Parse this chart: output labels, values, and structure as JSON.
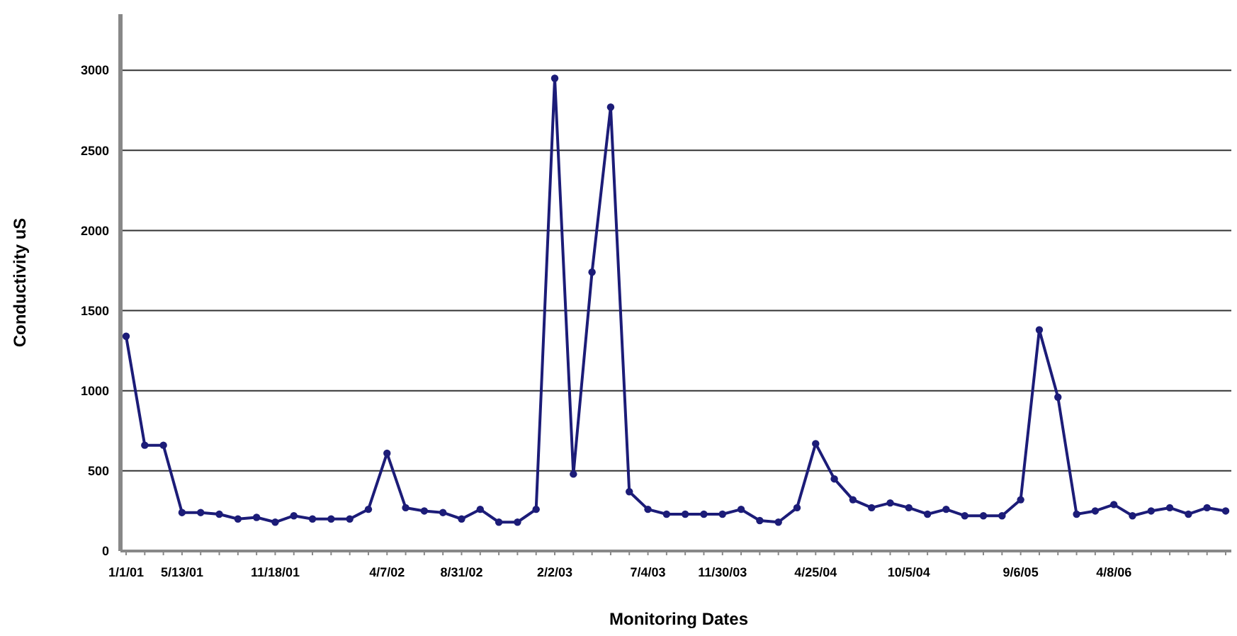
{
  "chart_data": {
    "type": "line",
    "xlabel": "Monitoring Dates",
    "ylabel": "Conductivity uS",
    "categories": [
      "1/1/01",
      null,
      null,
      "5/13/01",
      null,
      null,
      null,
      null,
      "11/18/01",
      null,
      null,
      null,
      null,
      null,
      "4/7/02",
      null,
      null,
      null,
      "8/31/02",
      null,
      null,
      null,
      null,
      "2/2/03",
      null,
      null,
      null,
      null,
      "7/4/03",
      null,
      null,
      null,
      "11/30/03",
      null,
      null,
      null,
      null,
      "4/25/04",
      null,
      null,
      null,
      null,
      "10/5/04",
      null,
      null,
      null,
      null,
      null,
      "9/6/05",
      null,
      null,
      null,
      null,
      "4/8/06",
      null,
      null,
      null,
      null,
      null,
      null
    ],
    "series": [
      {
        "color": "#1c1c78",
        "values": [
          1340,
          660,
          660,
          240,
          240,
          230,
          200,
          210,
          180,
          220,
          200,
          200,
          200,
          260,
          610,
          270,
          250,
          240,
          200,
          260,
          180,
          180,
          260,
          2950,
          480,
          1740,
          2770,
          370,
          260,
          230,
          230,
          230,
          230,
          260,
          190,
          180,
          270,
          670,
          450,
          320,
          270,
          300,
          270,
          230,
          260,
          220,
          220,
          220,
          320,
          1380,
          960,
          230,
          250,
          290,
          220,
          250,
          270,
          230,
          270,
          250
        ]
      }
    ],
    "ylim": [
      0,
      3350
    ],
    "yticks": [
      0,
      500,
      1000,
      1500,
      2000,
      2500,
      3000
    ],
    "grid": "y",
    "marker": "circle",
    "line_style": "solid"
  }
}
